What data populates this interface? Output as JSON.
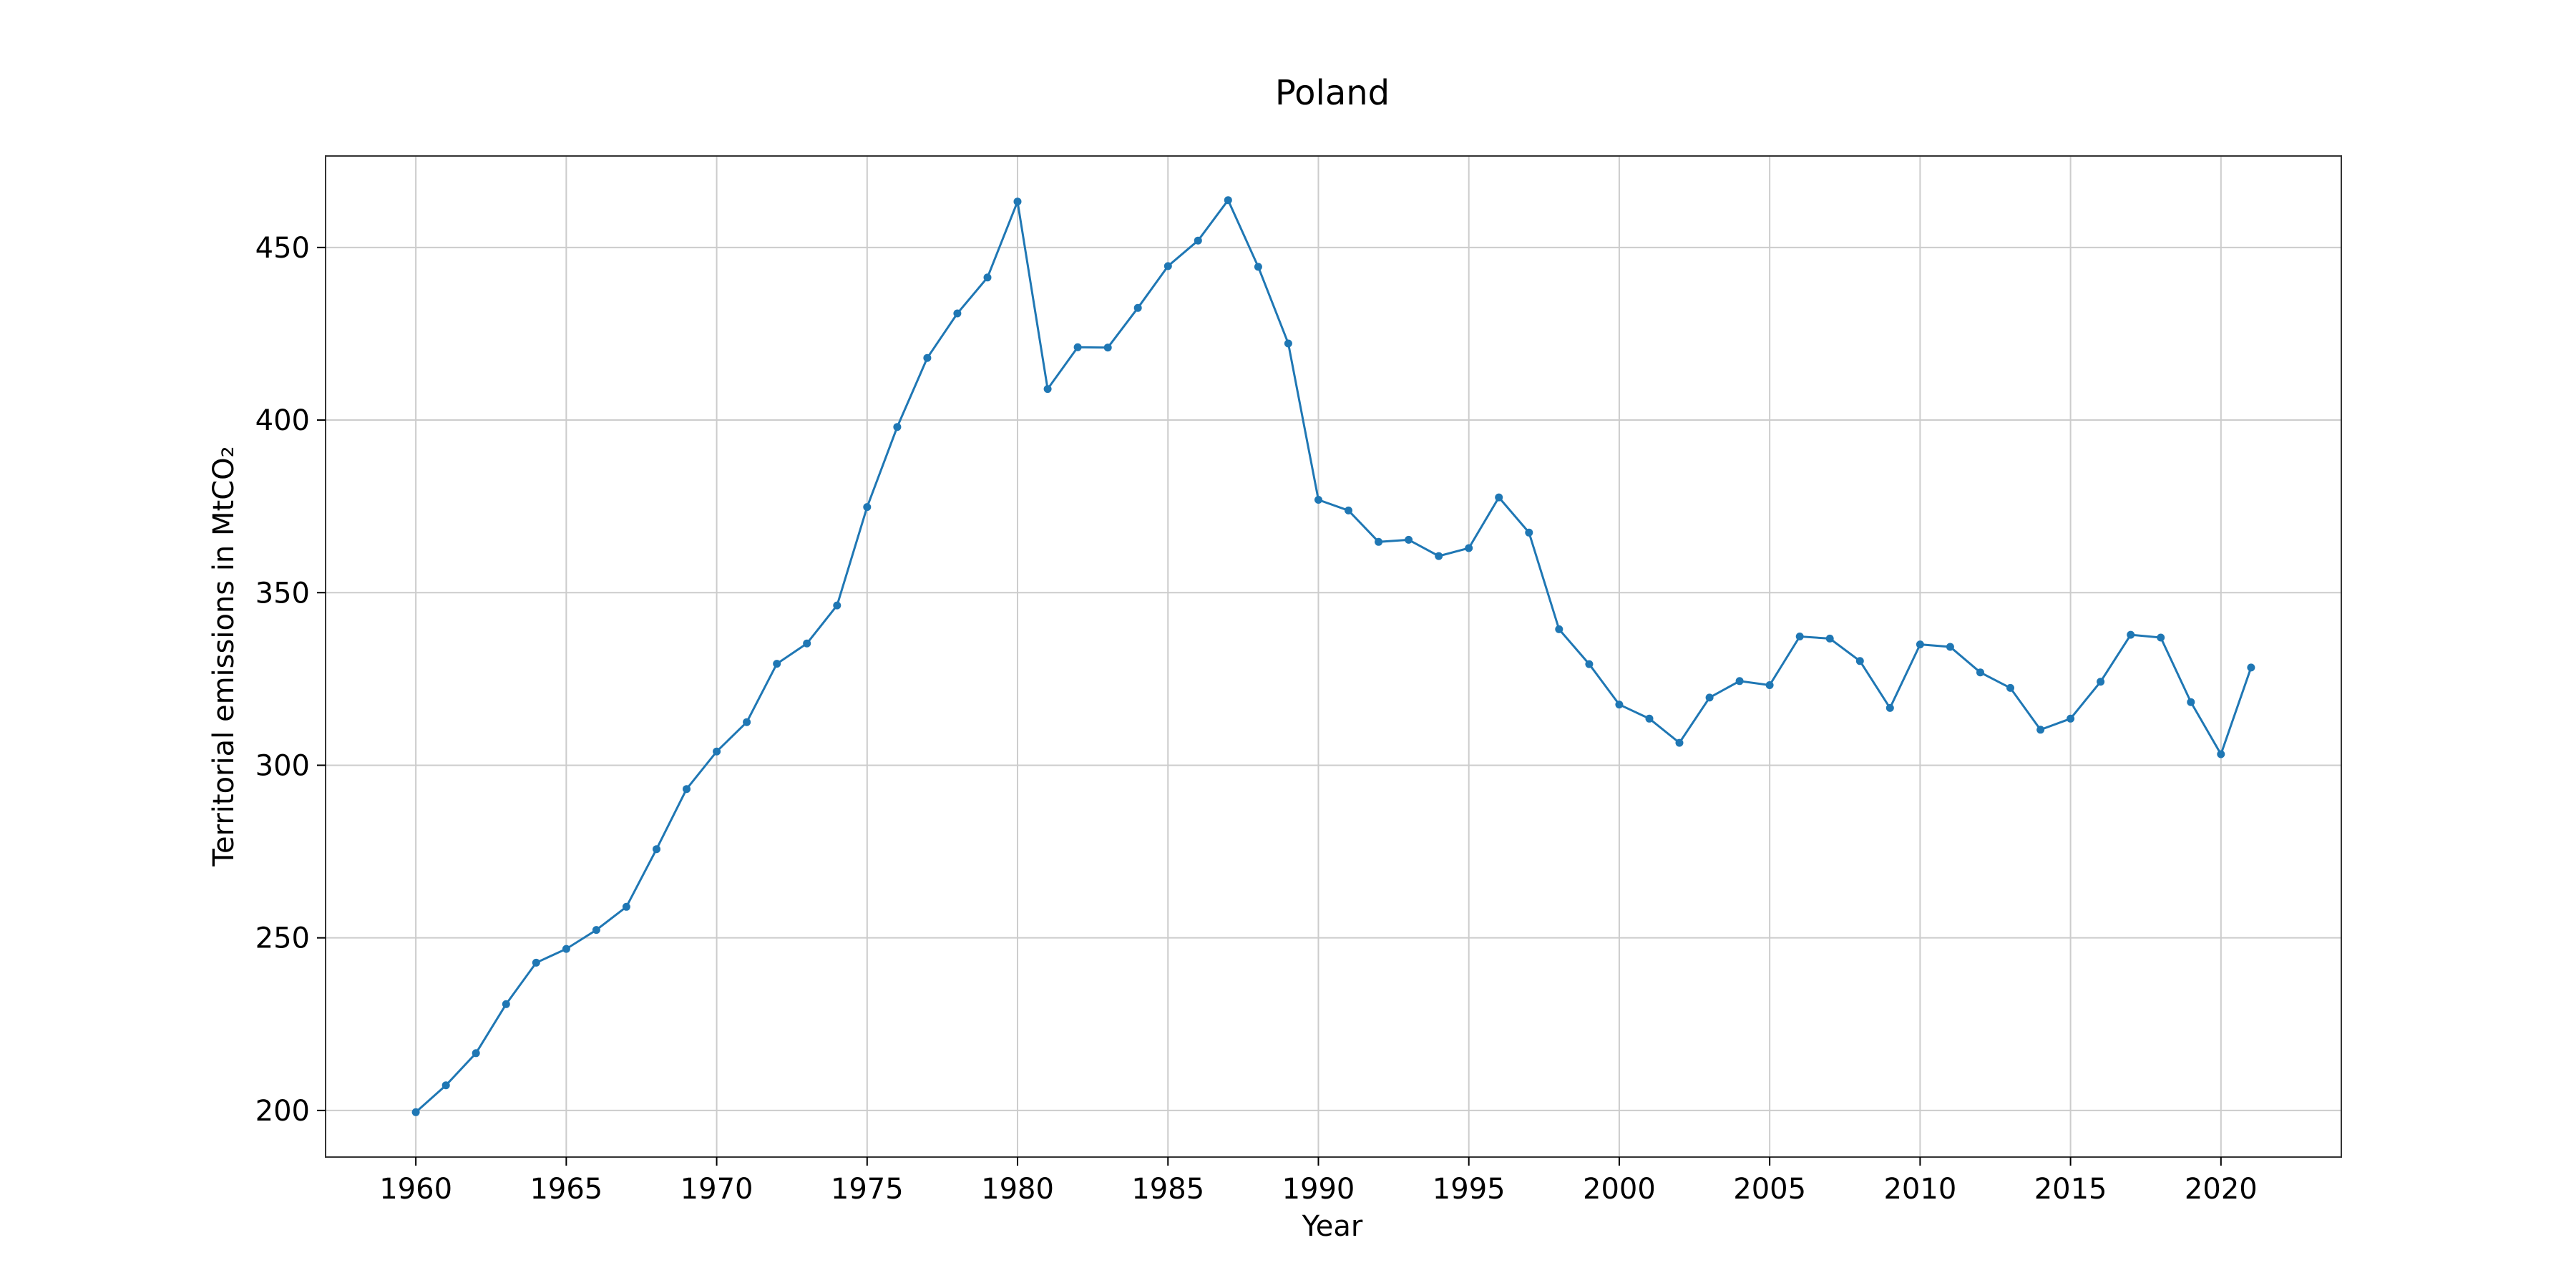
{
  "chart_data": {
    "type": "line",
    "title": "Poland",
    "xlabel": "Year",
    "ylabel": "Territorial emissions in MtCO₂",
    "xlim": [
      1957,
      2024
    ],
    "ylim": [
      186.5,
      476.5
    ],
    "xticks": [
      1960,
      1965,
      1970,
      1975,
      1980,
      1985,
      1990,
      1995,
      2000,
      2005,
      2010,
      2015,
      2020
    ],
    "yticks": [
      200,
      250,
      300,
      350,
      400,
      450
    ],
    "grid": true,
    "legend": "none",
    "line_color": "#1f77b4",
    "marker": "circle",
    "x": [
      1960,
      1961,
      1962,
      1963,
      1964,
      1965,
      1966,
      1967,
      1968,
      1969,
      1970,
      1971,
      1972,
      1973,
      1974,
      1975,
      1976,
      1977,
      1978,
      1979,
      1980,
      1981,
      1982,
      1983,
      1984,
      1985,
      1986,
      1987,
      1988,
      1989,
      1990,
      1991,
      1992,
      1993,
      1994,
      1995,
      1996,
      1997,
      1998,
      1999,
      2000,
      2001,
      2002,
      2003,
      2004,
      2005,
      2006,
      2007,
      2008,
      2009,
      2010,
      2011,
      2012,
      2013,
      2014,
      2015,
      2016,
      2017,
      2018,
      2019,
      2020,
      2021
    ],
    "y": [
      199.5,
      207.3,
      216.6,
      230.8,
      242.8,
      246.8,
      252.3,
      259.0,
      275.7,
      293.1,
      304.0,
      312.5,
      329.4,
      335.3,
      346.3,
      374.8,
      398.0,
      418.0,
      430.9,
      441.3,
      463.3,
      409.0,
      421.1,
      421.0,
      432.5,
      444.6,
      452.0,
      463.7,
      444.4,
      422.2,
      376.9,
      373.8,
      364.7,
      365.3,
      360.6,
      362.9,
      377.6,
      367.4,
      339.4,
      329.3,
      317.6,
      313.5,
      306.5,
      319.6,
      324.4,
      323.2,
      337.3,
      336.7,
      330.2,
      316.6,
      335.0,
      334.3,
      326.9,
      322.4,
      310.3,
      313.5,
      324.2,
      337.8,
      337.0,
      318.3,
      303.2,
      328.3
    ]
  }
}
